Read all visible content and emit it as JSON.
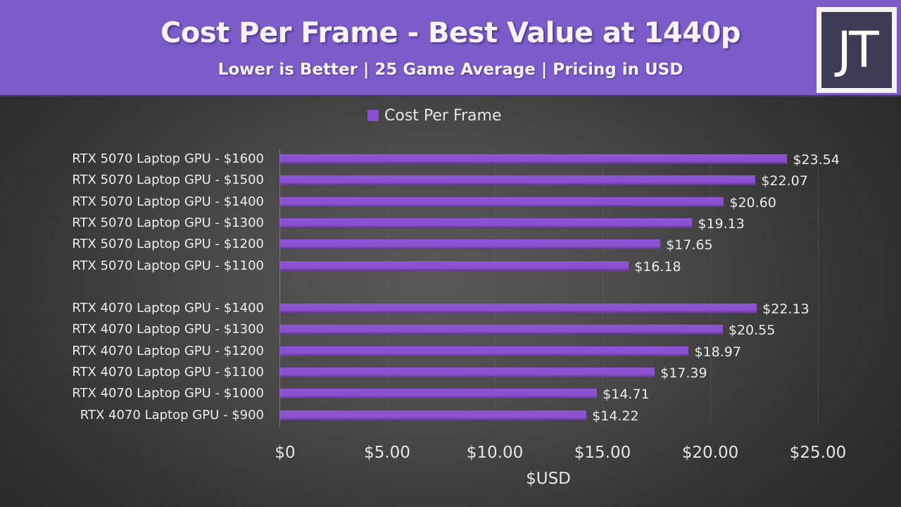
{
  "header": {
    "title": "Cost Per Frame - Best Value at 1440p",
    "subtitle": "Lower is Better | 25 Game Average | Pricing in USD",
    "logo_text": "JT",
    "bg_color": "#7c5cc9"
  },
  "legend": {
    "label": "Cost Per Frame",
    "color": "#8a4fcf"
  },
  "chart_data": {
    "type": "bar",
    "orientation": "horizontal",
    "title": "Cost Per Frame - Best Value at 1440p",
    "subtitle": "Lower is Better | 25 Game Average | Pricing in USD",
    "xlabel": "$USD",
    "ylabel": "",
    "xlim": [
      0,
      25
    ],
    "x_ticks": [
      "$0",
      "$5.00",
      "$10.00",
      "$15.00",
      "$20.00",
      "$25.00"
    ],
    "legend": [
      "Cost Per Frame"
    ],
    "legend_position": "top",
    "grid": false,
    "categories": [
      "RTX 5070 Laptop GPU - $1600",
      "RTX 5070 Laptop GPU - $1500",
      "RTX 5070 Laptop GPU - $1400",
      "RTX 5070 Laptop GPU - $1300",
      "RTX 5070 Laptop GPU - $1200",
      "RTX 5070 Laptop GPU - $1100",
      "",
      "RTX 4070 Laptop GPU - $1400",
      "RTX 4070 Laptop GPU - $1300",
      "RTX 4070 Laptop GPU - $1200",
      "RTX 4070 Laptop GPU - $1100",
      "RTX 4070 Laptop GPU - $1000",
      "RTX 4070 Laptop GPU - $900"
    ],
    "series": [
      {
        "name": "Cost Per Frame",
        "color": "#8a4fcf",
        "values": [
          23.54,
          22.07,
          20.6,
          19.13,
          17.65,
          16.18,
          null,
          22.13,
          20.55,
          18.97,
          17.39,
          14.71,
          14.22
        ],
        "labels": [
          "$23.54",
          "$22.07",
          "$20.60",
          "$19.13",
          "$17.65",
          "$16.18",
          "",
          "$22.13",
          "$20.55",
          "$18.97",
          "$17.39",
          "$14.71",
          "$14.22"
        ]
      }
    ]
  }
}
